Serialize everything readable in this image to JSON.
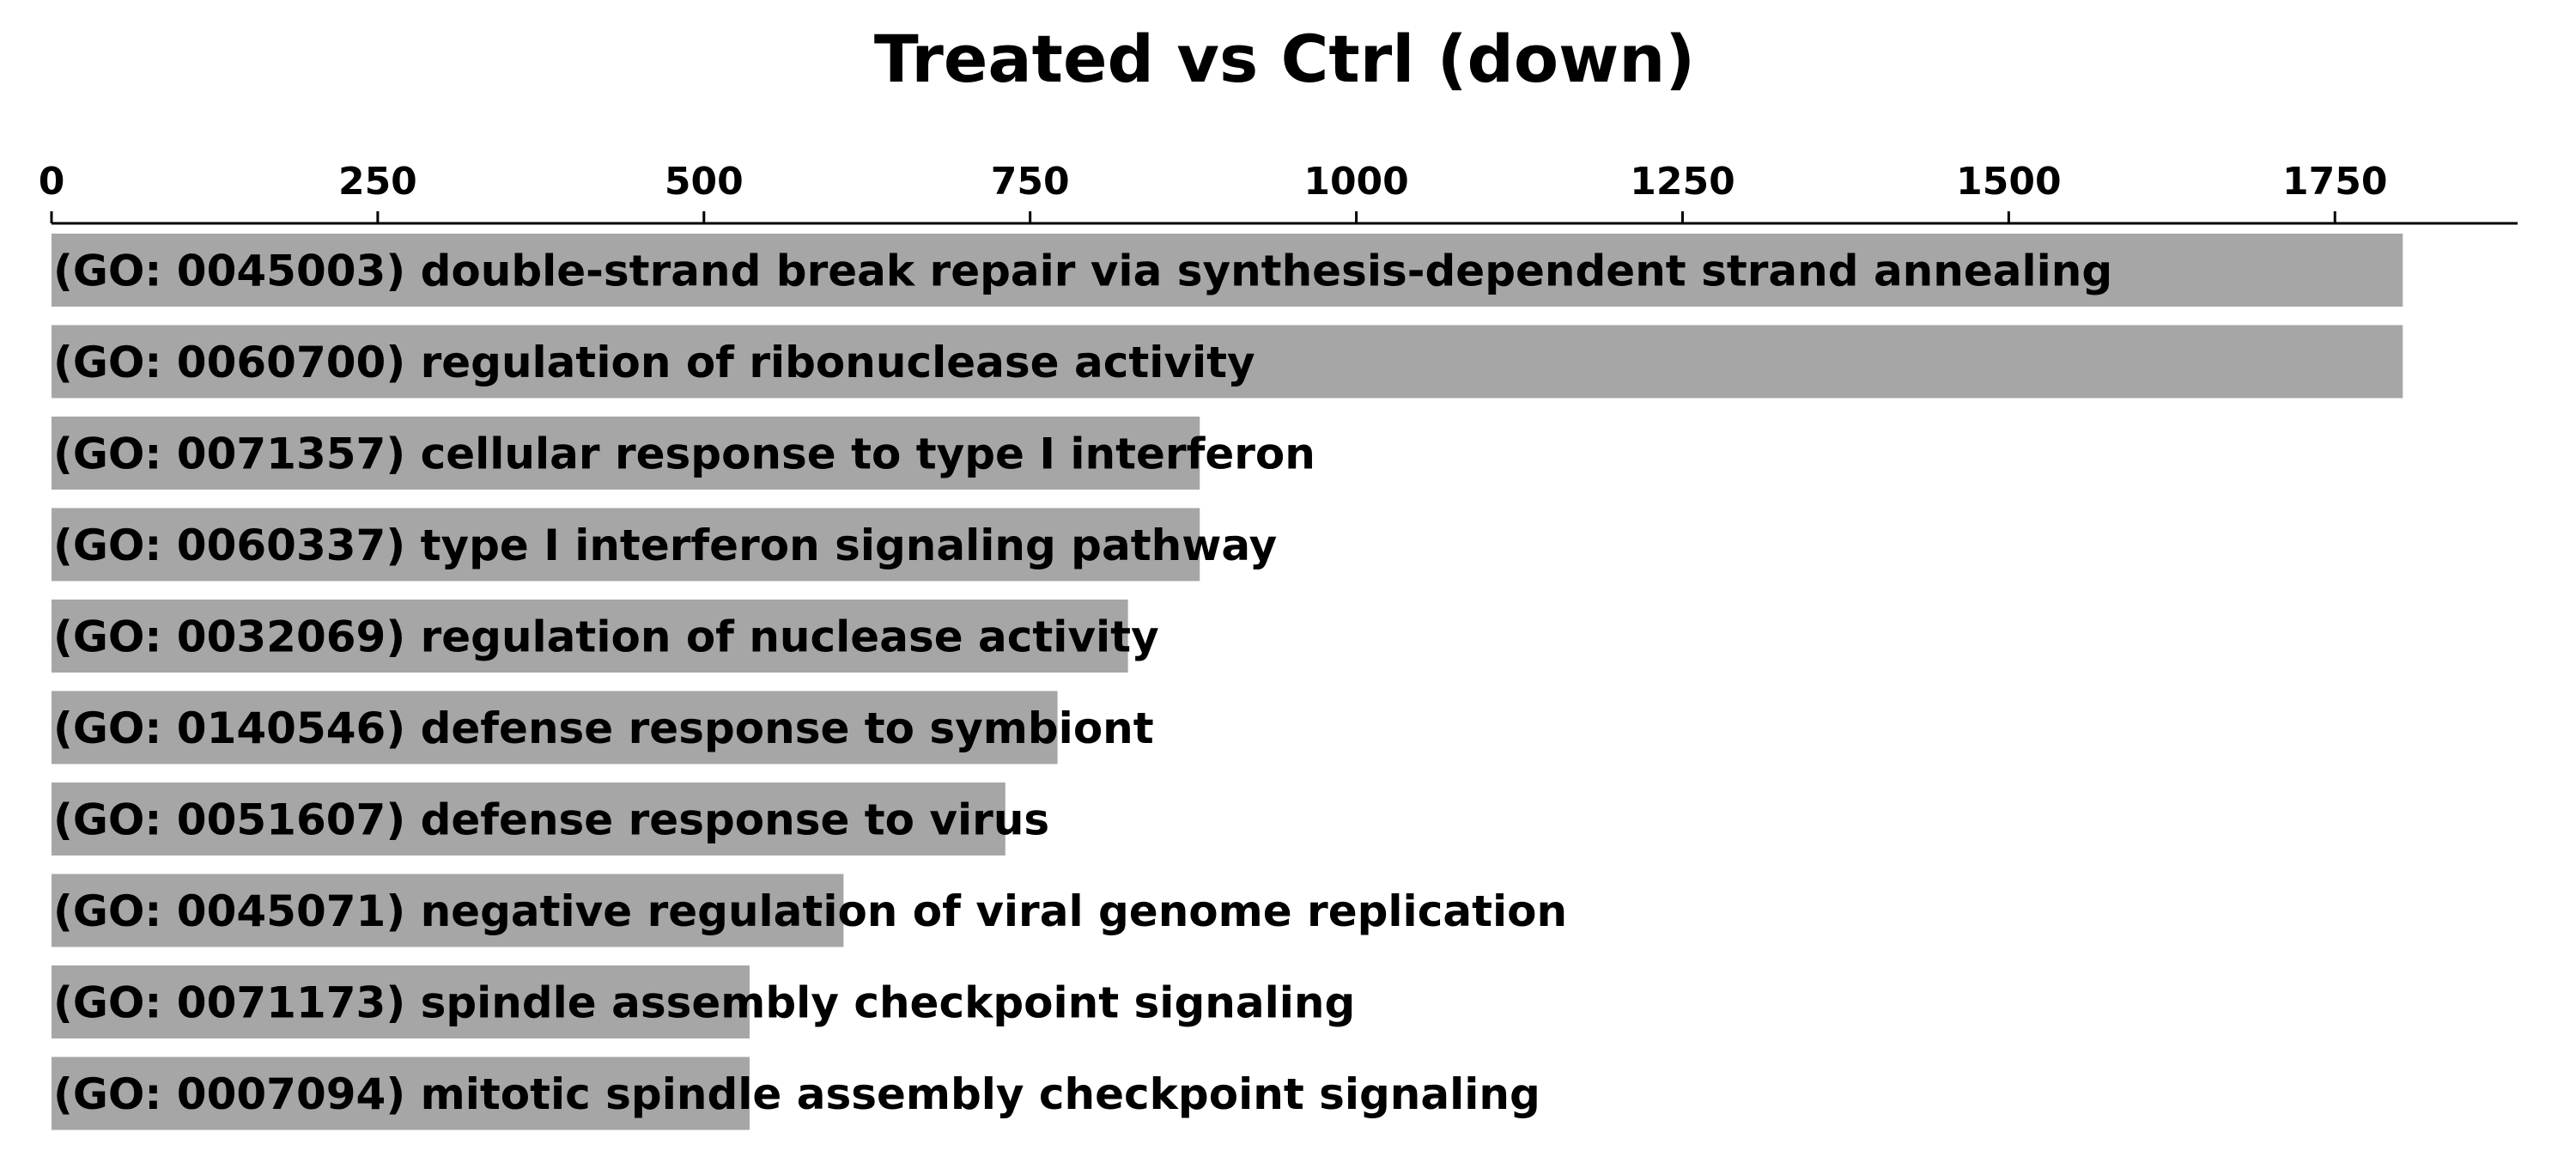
{
  "chart_data": {
    "type": "bar",
    "orientation": "horizontal",
    "title": "Treated vs Ctrl (down)",
    "xlabel": "",
    "ylabel": "",
    "xlim": [
      0,
      1890
    ],
    "x_ticks": [
      0,
      250,
      500,
      750,
      1000,
      1250,
      1500,
      1750
    ],
    "x_tick_labels": [
      "0",
      "250",
      "500",
      "750",
      "1000",
      "1250",
      "1500",
      "1750"
    ],
    "x_axis_position": "top",
    "grid": false,
    "legend": "none",
    "bar_color": "#a6a6a6",
    "categories": [
      "(GO: 0045003) double-strand break repair via synthesis-dependent strand annealing",
      "(GO: 0060700) regulation of ribonuclease activity",
      "(GO: 0071357) cellular response to type I interferon",
      "(GO: 0060337) type I interferon signaling pathway",
      "(GO: 0032069) regulation of nuclease activity",
      "(GO: 0140546) defense response to symbiont",
      "(GO: 0051607) defense response to virus",
      "(GO: 0045071) negative regulation of viral genome replication",
      "(GO: 0071173) spindle assembly checkpoint signaling",
      "(GO: 0007094) mitotic spindle assembly checkpoint signaling"
    ],
    "values": [
      1802,
      1802,
      880,
      880,
      825,
      771,
      731,
      607,
      535,
      535
    ]
  }
}
